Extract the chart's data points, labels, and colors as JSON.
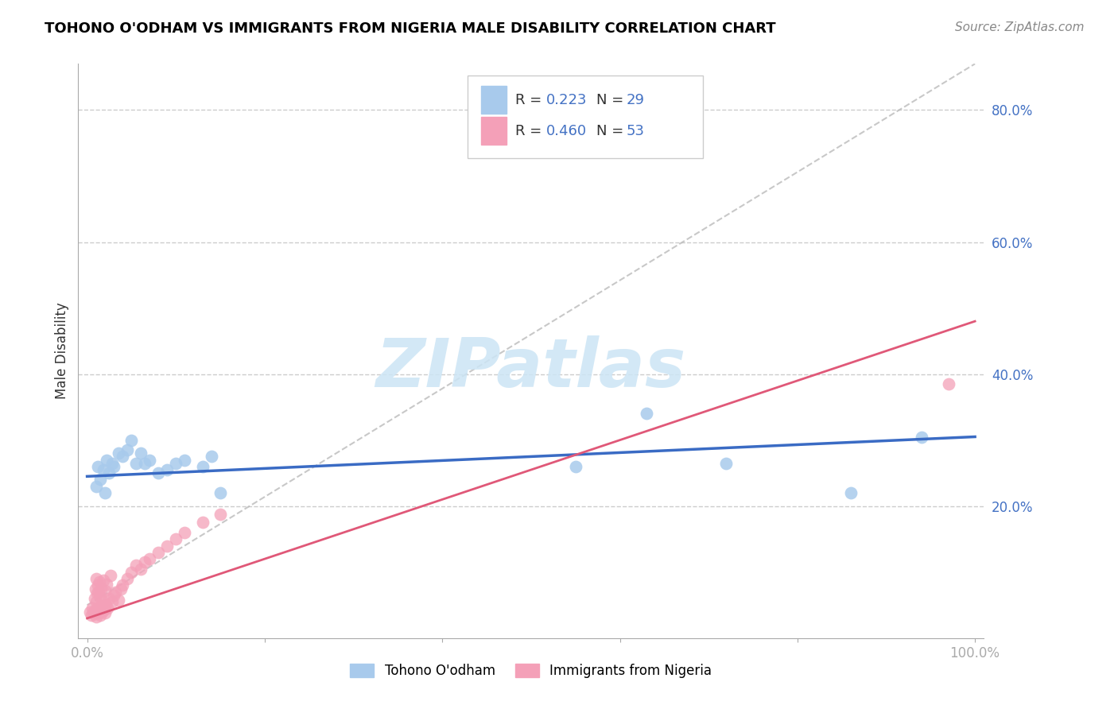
{
  "title": "TOHONO O'ODHAM VS IMMIGRANTS FROM NIGERIA MALE DISABILITY CORRELATION CHART",
  "source": "Source: ZipAtlas.com",
  "ylabel": "Male Disability",
  "legend_label_1": "Tohono O'odham",
  "legend_label_2": "Immigrants from Nigeria",
  "r1": 0.223,
  "n1": 29,
  "r2": 0.46,
  "n2": 53,
  "color1": "#A8CAEC",
  "color2": "#F4A0B8",
  "line1_color": "#3A6BC4",
  "line2_color": "#E05878",
  "trendline_color": "#BBBBBB",
  "blue_x": [
    0.01,
    0.012,
    0.015,
    0.018,
    0.02,
    0.022,
    0.025,
    0.028,
    0.03,
    0.035,
    0.04,
    0.045,
    0.05,
    0.055,
    0.06,
    0.065,
    0.07,
    0.08,
    0.09,
    0.1,
    0.11,
    0.13,
    0.14,
    0.15,
    0.55,
    0.63,
    0.72,
    0.86,
    0.94
  ],
  "blue_y": [
    0.23,
    0.26,
    0.24,
    0.255,
    0.22,
    0.27,
    0.25,
    0.265,
    0.26,
    0.28,
    0.275,
    0.285,
    0.3,
    0.265,
    0.28,
    0.265,
    0.27,
    0.25,
    0.255,
    0.265,
    0.27,
    0.26,
    0.275,
    0.22,
    0.26,
    0.34,
    0.265,
    0.22,
    0.305
  ],
  "pink_x": [
    0.003,
    0.005,
    0.006,
    0.007,
    0.008,
    0.008,
    0.009,
    0.009,
    0.01,
    0.01,
    0.01,
    0.011,
    0.011,
    0.012,
    0.012,
    0.013,
    0.013,
    0.014,
    0.014,
    0.015,
    0.015,
    0.016,
    0.016,
    0.017,
    0.018,
    0.018,
    0.019,
    0.02,
    0.02,
    0.021,
    0.022,
    0.023,
    0.025,
    0.026,
    0.028,
    0.03,
    0.032,
    0.035,
    0.038,
    0.04,
    0.045,
    0.05,
    0.055,
    0.06,
    0.065,
    0.07,
    0.08,
    0.09,
    0.1,
    0.11,
    0.13,
    0.15,
    0.97
  ],
  "pink_y": [
    0.04,
    0.035,
    0.045,
    0.038,
    0.042,
    0.06,
    0.038,
    0.075,
    0.032,
    0.055,
    0.09,
    0.04,
    0.068,
    0.045,
    0.08,
    0.038,
    0.07,
    0.042,
    0.085,
    0.035,
    0.062,
    0.048,
    0.076,
    0.041,
    0.055,
    0.088,
    0.044,
    0.038,
    0.072,
    0.05,
    0.082,
    0.046,
    0.06,
    0.095,
    0.055,
    0.065,
    0.07,
    0.058,
    0.075,
    0.08,
    0.09,
    0.1,
    0.11,
    0.105,
    0.115,
    0.12,
    0.13,
    0.14,
    0.15,
    0.16,
    0.175,
    0.188,
    0.385
  ],
  "xlim": [
    0.0,
    1.0
  ],
  "ylim": [
    0.0,
    0.87
  ],
  "ytick_positions": [
    0.2,
    0.4,
    0.6,
    0.8
  ],
  "ytick_labels": [
    "20.0%",
    "40.0%",
    "60.0%",
    "80.0%"
  ]
}
